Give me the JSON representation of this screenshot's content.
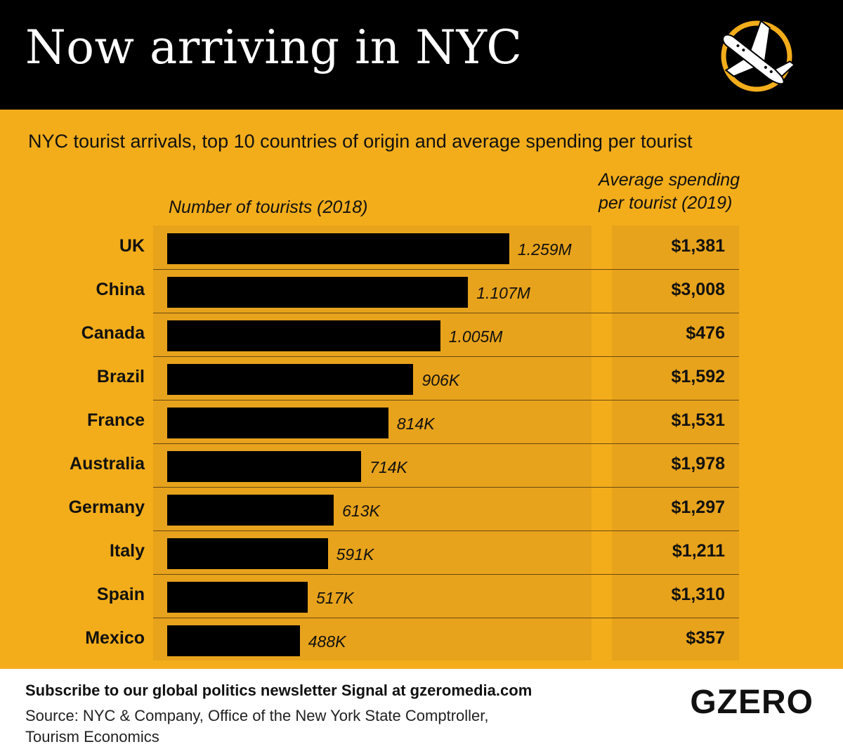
{
  "header": {
    "title": "Now arriving in NYC",
    "logo_icon": "plane-landing-icon",
    "logo_ring_color": "#f3ad1b"
  },
  "subtitle": "NYC tourist arrivals, top 10 countries of origin and average spending per tourist",
  "columns": {
    "bars_label": "Number of tourists (2018)",
    "spend_label_line1": "Average spending",
    "spend_label_line2": "per tourist (2019)"
  },
  "chart_data": {
    "type": "bar",
    "orientation": "horizontal",
    "categories": [
      "UK",
      "China",
      "Canada",
      "Brazil",
      "France",
      "Australia",
      "Germany",
      "Italy",
      "Spain",
      "Mexico"
    ],
    "series": [
      {
        "name": "Number of tourists (2018)",
        "values": [
          1259000,
          1107000,
          1005000,
          906000,
          814000,
          714000,
          613000,
          591000,
          517000,
          488000
        ],
        "labels": [
          "1.259M",
          "1.107M",
          "1.005M",
          "906K",
          "814K",
          "714K",
          "613K",
          "591K",
          "517K",
          "488K"
        ]
      },
      {
        "name": "Average spending per tourist (2019)",
        "values": [
          1381,
          3008,
          476,
          1592,
          1531,
          1978,
          1297,
          1211,
          1310,
          357
        ],
        "labels": [
          "$1,381",
          "$3,008",
          "$476",
          "$1,592",
          "$1,531",
          "$1,978",
          "$1,297",
          "$1,211",
          "$1,310",
          "$357"
        ]
      }
    ],
    "bar_color": "#000000",
    "background_color": "#f3ad1b",
    "panel_color": "#e8a31c"
  },
  "footer": {
    "newsletter": "Subscribe to our global politics newsletter Signal at gzeromedia.com",
    "source_line1": "Source: NYC & Company, Office of the New York State Comptroller,",
    "source_line2": "Tourism Economics",
    "brand": "GZERO"
  }
}
